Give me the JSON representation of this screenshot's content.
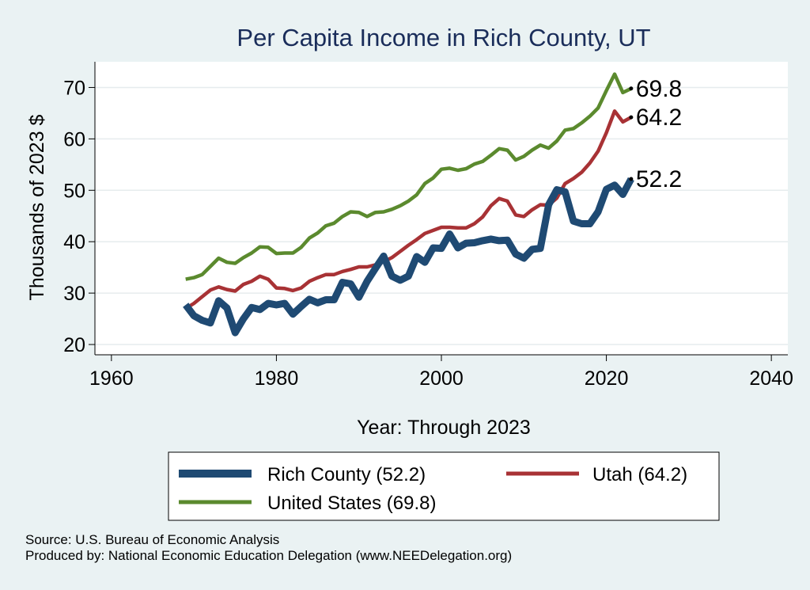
{
  "chart_data": {
    "type": "line",
    "title": "Per Capita Income in Rich County, UT",
    "xlabel": "Year: Through 2023",
    "ylabel": "Thousands of 2023 $",
    "xlim": [
      1958,
      2042
    ],
    "ylim": [
      18,
      75
    ],
    "xticks": [
      1960,
      1980,
      2000,
      2020,
      2040
    ],
    "yticks": [
      20,
      30,
      40,
      50,
      60,
      70
    ],
    "x": [
      1969,
      1970,
      1971,
      1972,
      1973,
      1974,
      1975,
      1976,
      1977,
      1978,
      1979,
      1980,
      1981,
      1982,
      1983,
      1984,
      1985,
      1986,
      1987,
      1988,
      1989,
      1990,
      1991,
      1992,
      1993,
      1994,
      1995,
      1996,
      1997,
      1998,
      1999,
      2000,
      2001,
      2002,
      2003,
      2004,
      2005,
      2006,
      2007,
      2008,
      2009,
      2010,
      2011,
      2012,
      2013,
      2014,
      2015,
      2016,
      2017,
      2018,
      2019,
      2020,
      2021,
      2022,
      2023
    ],
    "series": [
      {
        "name": "United States",
        "color": "#5b8a2e",
        "end_label": "69.8",
        "values": [
          32.7,
          33.0,
          33.6,
          35.2,
          36.8,
          36.0,
          35.8,
          36.9,
          37.8,
          39.0,
          38.9,
          37.7,
          37.8,
          37.8,
          38.9,
          40.7,
          41.7,
          43.1,
          43.6,
          44.9,
          45.8,
          45.7,
          44.9,
          45.7,
          45.8,
          46.3,
          47.0,
          47.9,
          49.1,
          51.3,
          52.4,
          54.1,
          54.3,
          53.9,
          54.2,
          55.1,
          55.6,
          56.8,
          58.1,
          57.8,
          55.9,
          56.6,
          57.8,
          58.8,
          58.2,
          59.6,
          61.7,
          62.0,
          63.1,
          64.4,
          66.0,
          69.4,
          72.6,
          69.0,
          69.8
        ]
      },
      {
        "name": "Utah",
        "color": "#a83235",
        "end_label": "64.2",
        "values": [
          27.0,
          28.0,
          29.3,
          30.6,
          31.2,
          30.7,
          30.4,
          31.7,
          32.3,
          33.3,
          32.7,
          31.0,
          30.9,
          30.5,
          31.0,
          32.3,
          33.0,
          33.6,
          33.6,
          34.2,
          34.6,
          35.1,
          35.1,
          35.5,
          36.1,
          36.9,
          38.1,
          39.3,
          40.4,
          41.6,
          42.2,
          42.8,
          42.8,
          42.7,
          42.7,
          43.5,
          44.8,
          47.0,
          48.4,
          47.9,
          45.2,
          44.9,
          46.2,
          47.2,
          47.1,
          48.5,
          51.3,
          52.3,
          53.5,
          55.3,
          57.6,
          61.2,
          65.4,
          63.3,
          64.2
        ]
      },
      {
        "name": "Rich County",
        "color": "#1f4a73",
        "end_label": "52.2",
        "values": [
          27.7,
          25.6,
          24.7,
          24.2,
          28.5,
          27.1,
          22.3,
          25.0,
          27.2,
          26.8,
          28.0,
          27.7,
          28.0,
          25.9,
          27.4,
          28.8,
          28.1,
          28.7,
          28.7,
          32.1,
          31.8,
          29.2,
          32.3,
          34.8,
          37.2,
          33.3,
          32.5,
          33.3,
          37.1,
          36.0,
          38.8,
          38.7,
          41.5,
          38.8,
          39.7,
          39.8,
          40.2,
          40.5,
          40.2,
          40.3,
          37.6,
          36.8,
          38.5,
          38.7,
          47.2,
          50.1,
          49.7,
          44.0,
          43.5,
          43.5,
          45.8,
          50.2,
          51.0,
          49.2,
          52.2
        ]
      }
    ],
    "legend": {
      "position": "bottom",
      "entries": [
        {
          "label": "Rich County (52.2)",
          "series": "Rich County"
        },
        {
          "label": "Utah (64.2)",
          "series": "Utah"
        },
        {
          "label": "United States (69.8)",
          "series": "United States"
        }
      ]
    }
  },
  "source": {
    "line1": "Source: U.S. Bureau of Economic Analysis",
    "line2": "Produced by: National Economic Education Delegation (www.NEEDelegation.org)"
  }
}
